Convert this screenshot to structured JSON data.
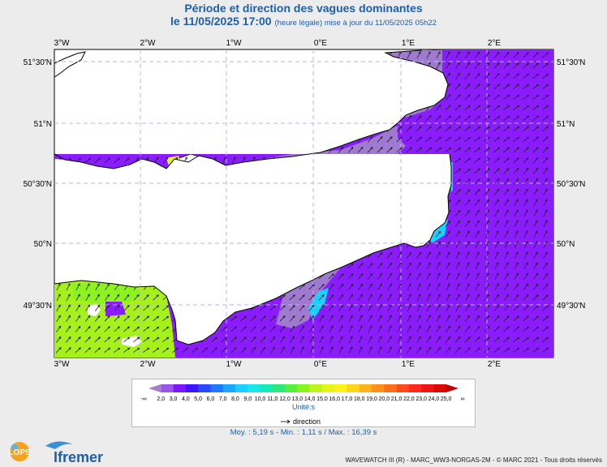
{
  "title": "Période et direction des vagues dominantes",
  "subtitle": {
    "datetime": "le 11/05/2025 17:00",
    "note": "(heure légale) mise à jour du 11/05/2025 05h22"
  },
  "axes": {
    "lon_labels": [
      "3°W",
      "2°W",
      "1°W",
      "0°E",
      "1°E",
      "2°E"
    ],
    "lat_labels": [
      "51°30'N",
      "51°N",
      "50°30'N",
      "50°N",
      "49°30'N"
    ]
  },
  "legend": {
    "values": [
      "2,0",
      "3,0",
      "4,0",
      "5,0",
      "6,0",
      "7,0",
      "8,0",
      "9,0",
      "10,0",
      "11,0",
      "12,0",
      "13,0",
      "14,0",
      "15,0",
      "16,0",
      "17,0",
      "18,0",
      "19,0",
      "20,0",
      "21,0",
      "22,0",
      "23,0",
      "24,0",
      "25,0"
    ],
    "low_symbol": "-∞",
    "high_symbol": "∞",
    "colors": [
      "#a67cc9",
      "#9a55e6",
      "#7d17ff",
      "#3c16ff",
      "#2a48ff",
      "#1e79ff",
      "#1ea7ff",
      "#19d0ff",
      "#19e8e8",
      "#19e8b8",
      "#2fe87a",
      "#55ef3c",
      "#8cf41c",
      "#bff41c",
      "#e6f41c",
      "#fff21c",
      "#ffd51c",
      "#ffb21c",
      "#ff901c",
      "#ff6e1c",
      "#ff4b1c",
      "#ff2a1c",
      "#f01414",
      "#d80a0a",
      "#c00000"
    ],
    "unit_label": "Unité:s",
    "direction_label": "direction"
  },
  "stats": "Moy. : 5,19 s   -   Min. : 1,11 s / Max. : 16,39 s",
  "footer": "WAVEWATCH III (R) - MARC_WW3-NORGAS-2M - © MARC 2021 - Tous droits réservés",
  "logos": {
    "lops": "LOPS",
    "ifremer": "Ifremer"
  },
  "colors": {
    "land": "#ffffff",
    "grid": "#b6b6ee",
    "period_4s": "#8a1cff",
    "period_3s": "#a07ad0",
    "period_6s": "#2a48ff",
    "period_9s": "#19d0ff",
    "period_14s": "#a6f01c"
  },
  "map_data": {
    "lon_range": [
      -3.0,
      2.8
    ],
    "lat_range": [
      49.1,
      51.58
    ],
    "mean_direction_from_deg": 230
  }
}
